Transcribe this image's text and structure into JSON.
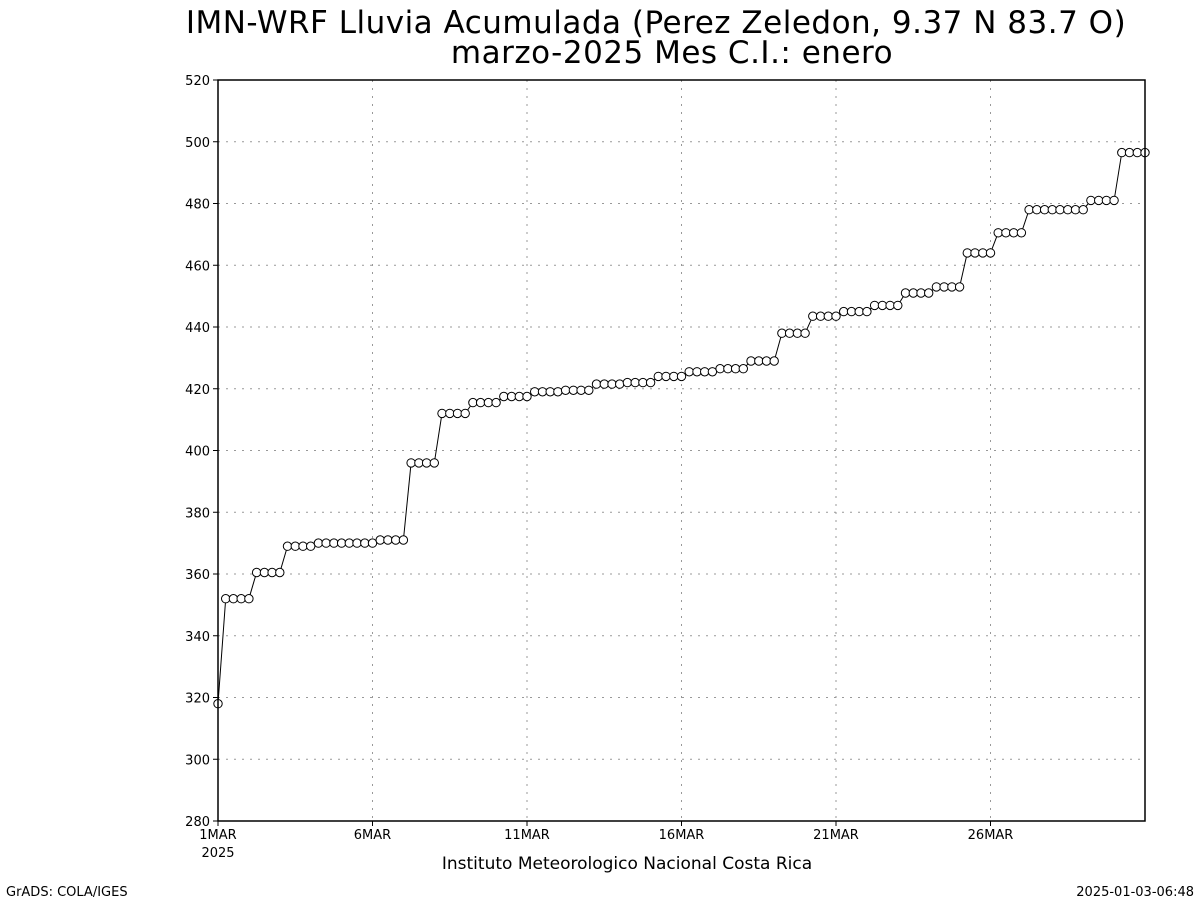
{
  "chart_data": {
    "type": "line",
    "title": "IMN-WRF  Lluvia Acumulada (Perez Zeledon, 9.37  N 83.7  O)",
    "subtitle": "marzo-2025 Mes C.I.: enero",
    "xlabel": "",
    "ylabel": "",
    "xlim": [
      "2025-03-01 00:00",
      "2025-03-31 00:00"
    ],
    "ylim": [
      280,
      520
    ],
    "y_ticks": [
      280,
      300,
      320,
      340,
      360,
      380,
      400,
      420,
      440,
      460,
      480,
      500,
      520
    ],
    "x_ticks": [
      {
        "x": "2025-03-01",
        "label": "1MAR",
        "sublabel": "2025"
      },
      {
        "x": "2025-03-06",
        "label": "6MAR"
      },
      {
        "x": "2025-03-11",
        "label": "11MAR"
      },
      {
        "x": "2025-03-16",
        "label": "16MAR"
      },
      {
        "x": "2025-03-21",
        "label": "21MAR"
      },
      {
        "x": "2025-03-26",
        "label": "26MAR"
      }
    ],
    "grid": true,
    "line_color": "#000000",
    "marker": "open-circle",
    "series": [
      {
        "x_start": "2025-03-01 00:00",
        "interval_hours": 6,
        "values": [
          318,
          352,
          352,
          352,
          352,
          360.5,
          360.5,
          360.5,
          360.5,
          369,
          369,
          369,
          369,
          370,
          370,
          370,
          370,
          370,
          370,
          370,
          370,
          371,
          371,
          371,
          371,
          396,
          396,
          396,
          396,
          412,
          412,
          412,
          412,
          415.5,
          415.5,
          415.5,
          415.5,
          417.5,
          417.5,
          417.5,
          417.5,
          419,
          419,
          419,
          419,
          419.5,
          419.5,
          419.5,
          419.5,
          421.5,
          421.5,
          421.5,
          421.5,
          422,
          422,
          422,
          422,
          424,
          424,
          424,
          424,
          425.5,
          425.5,
          425.5,
          425.5,
          426.5,
          426.5,
          426.5,
          426.5,
          429,
          429,
          429,
          429,
          438,
          438,
          438,
          438,
          443.5,
          443.5,
          443.5,
          443.5,
          445,
          445,
          445,
          445,
          447,
          447,
          447,
          447,
          451,
          451,
          451,
          451,
          453,
          453,
          453,
          453,
          464,
          464,
          464,
          464,
          470.5,
          470.5,
          470.5,
          470.5,
          478,
          478,
          478,
          478,
          478,
          478,
          478,
          478,
          481,
          481,
          481,
          481,
          496.5,
          496.5,
          496.5,
          496.5
        ]
      }
    ]
  },
  "footer": {
    "institution": "Instituto Meteorologico Nacional Costa Rica",
    "credit": "GrADS: COLA/IGES",
    "timestamp": "2025-01-03-06:48"
  }
}
